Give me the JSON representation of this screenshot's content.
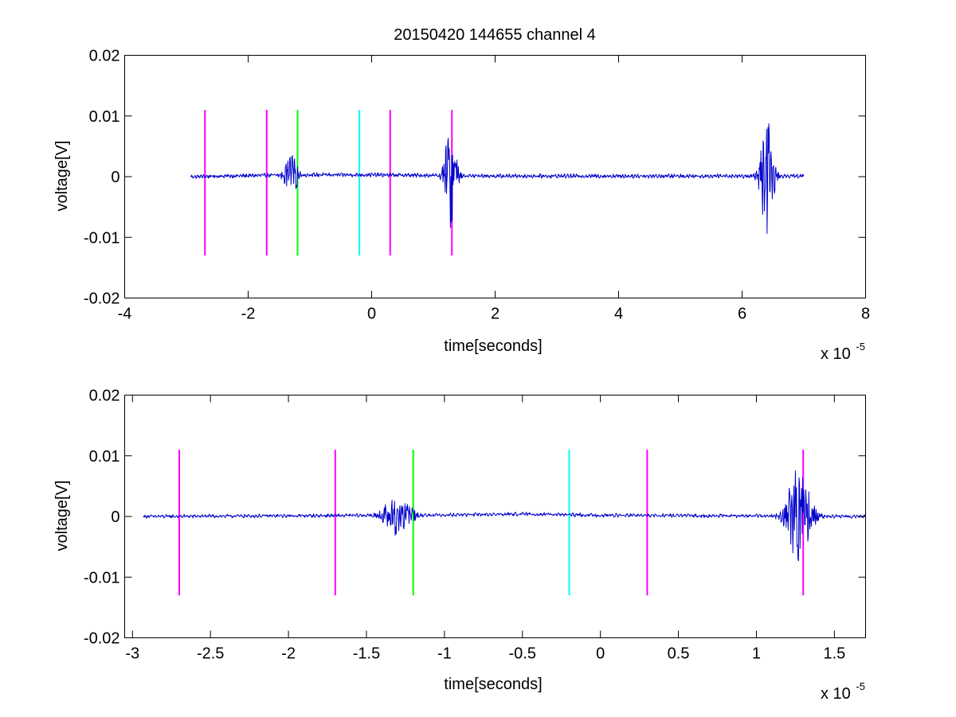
{
  "chart_data": [
    {
      "type": "line",
      "title": "20150420 144655 channel 4",
      "xlabel": "time[seconds]",
      "ylabel": "voltage[V]",
      "x_multiplier_label": "x 10",
      "x_multiplier_exponent": "-5",
      "xlim": [
        -4,
        8
      ],
      "ylim": [
        -0.02,
        0.02
      ],
      "x_ticks": [
        -4,
        -2,
        0,
        2,
        4,
        6,
        8
      ],
      "x_tick_labels": [
        "-4",
        "-2",
        "0",
        "2",
        "4",
        "6",
        "8"
      ],
      "y_ticks": [
        -0.02,
        -0.01,
        0,
        0.01,
        0.02
      ],
      "y_tick_labels": [
        "-0.02",
        "-0.01",
        "0",
        "0.01",
        "0.02"
      ],
      "grid": false,
      "signal_color": "#0000cc",
      "signal": {
        "x_range": [
          -2.93,
          7.0
        ],
        "baseline_drift": [
          [
            -2.93,
            0.0
          ],
          [
            -1.2,
            0.0003
          ],
          [
            0,
            0.0003
          ],
          [
            2,
            0.0001
          ],
          [
            7.0,
            0.0001
          ]
        ],
        "noise_amplitude": 0.0004,
        "bursts": [
          {
            "center": -1.3,
            "width": 0.25,
            "amplitude": 0.0035
          },
          {
            "center": 1.28,
            "width": 0.22,
            "amplitude": 0.0085
          },
          {
            "center": 6.4,
            "width": 0.25,
            "amplitude": 0.0095
          }
        ]
      },
      "markers": [
        {
          "x": -2.7,
          "y_range": [
            -0.013,
            0.011
          ],
          "color": "#ff00ff"
        },
        {
          "x": -1.7,
          "y_range": [
            -0.013,
            0.011
          ],
          "color": "#ff00ff"
        },
        {
          "x": -1.2,
          "y_range": [
            -0.013,
            0.011
          ],
          "color": "#00ff00"
        },
        {
          "x": -0.2,
          "y_range": [
            -0.013,
            0.011
          ],
          "color": "#00ffff"
        },
        {
          "x": 0.3,
          "y_range": [
            -0.013,
            0.011
          ],
          "color": "#ff00ff"
        },
        {
          "x": 1.3,
          "y_range": [
            -0.013,
            0.011
          ],
          "color": "#ff00ff"
        }
      ]
    },
    {
      "type": "line",
      "title": "",
      "xlabel": "time[seconds]",
      "ylabel": "voltage[V]",
      "x_multiplier_label": "x 10",
      "x_multiplier_exponent": "-5",
      "xlim": [
        -3.05,
        1.7
      ],
      "ylim": [
        -0.02,
        0.02
      ],
      "x_ticks": [
        -3,
        -2.5,
        -2,
        -1.5,
        -1,
        -0.5,
        0,
        0.5,
        1,
        1.5
      ],
      "x_tick_labels": [
        "-3",
        "-2.5",
        "-2",
        "-1.5",
        "-1",
        "-0.5",
        "0",
        "0.5",
        "1",
        "1.5"
      ],
      "y_ticks": [
        -0.02,
        -0.01,
        0,
        0.01,
        0.02
      ],
      "y_tick_labels": [
        "-0.02",
        "-0.01",
        "0",
        "0.01",
        "0.02"
      ],
      "grid": false,
      "signal_color": "#0000cc",
      "signal": {
        "x_range": [
          -2.93,
          1.7
        ],
        "baseline_drift": [
          [
            -2.93,
            0.0
          ],
          [
            -1.2,
            0.0002
          ],
          [
            -0.5,
            0.0004
          ],
          [
            0,
            0.0002
          ],
          [
            1.7,
            0.0
          ]
        ],
        "noise_amplitude": 0.00035,
        "bursts": [
          {
            "center": -1.3,
            "width": 0.2,
            "amplitude": 0.0035
          },
          {
            "center": 1.27,
            "width": 0.18,
            "amplitude": 0.0085
          }
        ]
      },
      "markers": [
        {
          "x": -2.7,
          "y_range": [
            -0.013,
            0.011
          ],
          "color": "#ff00ff"
        },
        {
          "x": -1.7,
          "y_range": [
            -0.013,
            0.011
          ],
          "color": "#ff00ff"
        },
        {
          "x": -1.2,
          "y_range": [
            -0.013,
            0.011
          ],
          "color": "#00ff00"
        },
        {
          "x": -0.2,
          "y_range": [
            -0.013,
            0.011
          ],
          "color": "#00ffff"
        },
        {
          "x": 0.3,
          "y_range": [
            -0.013,
            0.011
          ],
          "color": "#ff00ff"
        },
        {
          "x": 1.3,
          "y_range": [
            -0.013,
            0.011
          ],
          "color": "#ff00ff"
        }
      ]
    }
  ]
}
